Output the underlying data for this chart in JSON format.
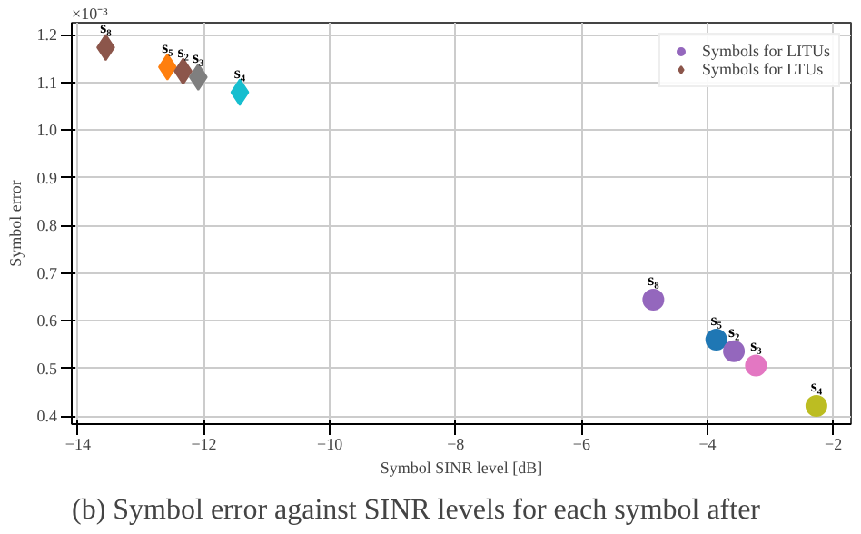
{
  "chart_data": {
    "type": "scatter",
    "xlabel": "Symbol SINR level [dB]",
    "ylabel": "Symbol error",
    "xlim": [
      -14.1,
      -1.72
    ],
    "ylim": [
      0.383,
      1.225
    ],
    "xticks": [
      {
        "value": -14,
        "label": "−14"
      },
      {
        "value": -12,
        "label": "−12"
      },
      {
        "value": -10,
        "label": "−10"
      },
      {
        "value": -8,
        "label": "−8"
      },
      {
        "value": -6,
        "label": "−6"
      },
      {
        "value": -4,
        "label": "−4"
      },
      {
        "value": -2,
        "label": "−2"
      }
    ],
    "yticks": [
      0.4,
      0.5,
      0.6,
      0.7,
      0.8,
      0.9,
      {
        "value": 1.0,
        "label": "1.0"
      },
      1.1,
      1.2
    ],
    "grid": true,
    "legend": "top right",
    "series": [
      {
        "name": "Symbols for LITUs",
        "marker": "circle",
        "x": [
          -4.86,
          -3.86,
          -3.58,
          -3.23,
          -2.27
        ],
        "values": [
          0.644,
          0.56,
          0.536,
          0.506,
          0.421
        ],
        "colors": [
          "#9467bd",
          "#1f77b4",
          "#9467bd",
          "#e377c2",
          "#bcbd22"
        ]
      },
      {
        "name": "Symbols for LTUs",
        "marker": "diamond",
        "x": [
          -13.56,
          -12.58,
          -12.33,
          -12.09,
          -11.43
        ],
        "values": [
          1.173,
          1.132,
          1.123,
          1.111,
          1.079
        ],
        "colors": [
          "#8c564b",
          "#ff7f0e",
          "#8c564b",
          "#7f7f7f",
          "#17becf"
        ]
      }
    ],
    "annotations": [
      "×10⁻³",
      {
        "text": "s₈",
        "x": -4.86,
        "y": 0.644
      },
      {
        "text": "s₅",
        "x": -3.86,
        "y": 0.56
      },
      {
        "text": "s₂",
        "x": -3.58,
        "y": 0.536
      },
      {
        "text": "s₃",
        "x": -3.23,
        "y": 0.506
      },
      {
        "text": "s₄",
        "x": -2.27,
        "y": 0.421
      },
      {
        "text": "s₈",
        "x": -13.56,
        "y": 1.173
      },
      {
        "text": "s₅",
        "x": -12.58,
        "y": 1.132
      },
      {
        "text": "s₂",
        "x": -12.33,
        "y": 1.123
      },
      {
        "text": "s₃",
        "x": -12.09,
        "y": 1.111
      },
      {
        "text": "s₄",
        "x": -11.43,
        "y": 1.079
      },
      "(b) Symbol error against SINR levels for each symbol after"
    ]
  }
}
